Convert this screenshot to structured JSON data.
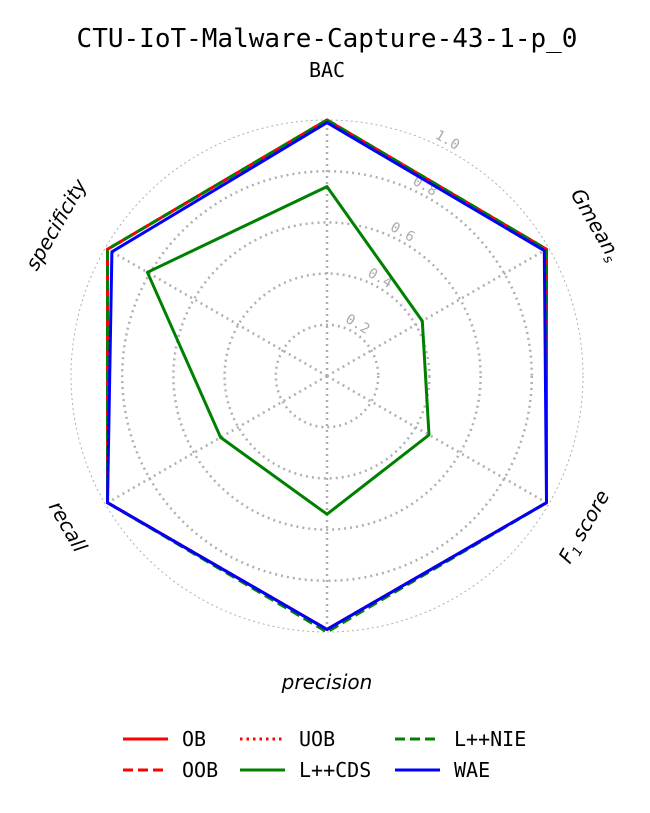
{
  "chart_data": {
    "type": "radar",
    "title": "CTU-IoT-Malware-Capture-43-1-p_0",
    "axes": [
      "BAC",
      "Gmeans",
      "F1 score",
      "precision",
      "recall",
      "specificity"
    ],
    "axis_label_parts": [
      {
        "main": "BAC",
        "sub": ""
      },
      {
        "main": "Gmean",
        "sub": "s"
      },
      {
        "main": "F",
        "sub": "1",
        "rest": " score"
      },
      {
        "main": "precision",
        "sub": ""
      },
      {
        "main": "recall",
        "sub": ""
      },
      {
        "main": "specificity",
        "sub": ""
      }
    ],
    "radial_ticks": [
      "0.2",
      "0.4",
      "0.6",
      "0.8",
      "1.0"
    ],
    "rlim": [
      0,
      1
    ],
    "grid": true,
    "legend_position": "bottom",
    "series": [
      {
        "name": "OB",
        "color": "#ff0000",
        "dash": "solid",
        "values": [
          1.0,
          0.99,
          0.99,
          0.99,
          0.99,
          0.99
        ]
      },
      {
        "name": "OOB",
        "color": "#ff0000",
        "dash": "dashed",
        "values": [
          1.0,
          0.99,
          0.99,
          0.99,
          0.99,
          0.99
        ]
      },
      {
        "name": "UOB",
        "color": "#ff0000",
        "dash": "dotted",
        "values": [
          1.0,
          0.99,
          0.99,
          0.99,
          0.99,
          0.99
        ]
      },
      {
        "name": "L++CDS",
        "color": "#008000",
        "dash": "solid",
        "values": [
          0.74,
          0.43,
          0.46,
          0.54,
          0.48,
          0.81
        ]
      },
      {
        "name": "L++NIE",
        "color": "#008000",
        "dash": "dashed",
        "values": [
          1.0,
          0.99,
          0.99,
          1.0,
          0.99,
          0.99
        ]
      },
      {
        "name": "WAE",
        "color": "#0000ff",
        "dash": "solid",
        "values": [
          0.99,
          0.98,
          0.99,
          0.99,
          0.99,
          0.97
        ]
      }
    ]
  }
}
